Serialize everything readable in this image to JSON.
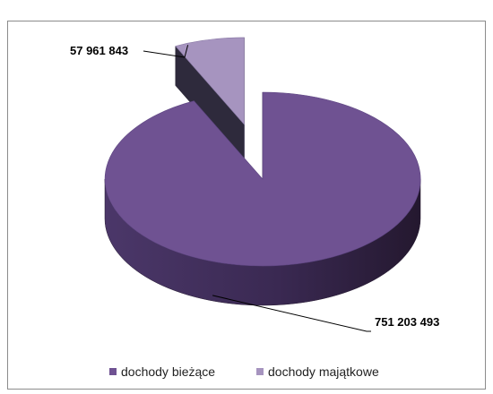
{
  "chart_data": {
    "type": "pie",
    "style": "3d-exploded",
    "categories": [
      "dochody bieżące",
      "dochody majątkowe"
    ],
    "values": [
      751203493,
      57961843
    ],
    "labels": [
      "751 203 493",
      "57 961 843"
    ],
    "colors": {
      "top": [
        "#6f5292",
        "#a694bf"
      ],
      "side": [
        "#3f2d58",
        "#5f5378"
      ],
      "side_dark": [
        "#2a1d3c",
        "#3e3650"
      ]
    },
    "legend_position": "bottom",
    "title": ""
  }
}
